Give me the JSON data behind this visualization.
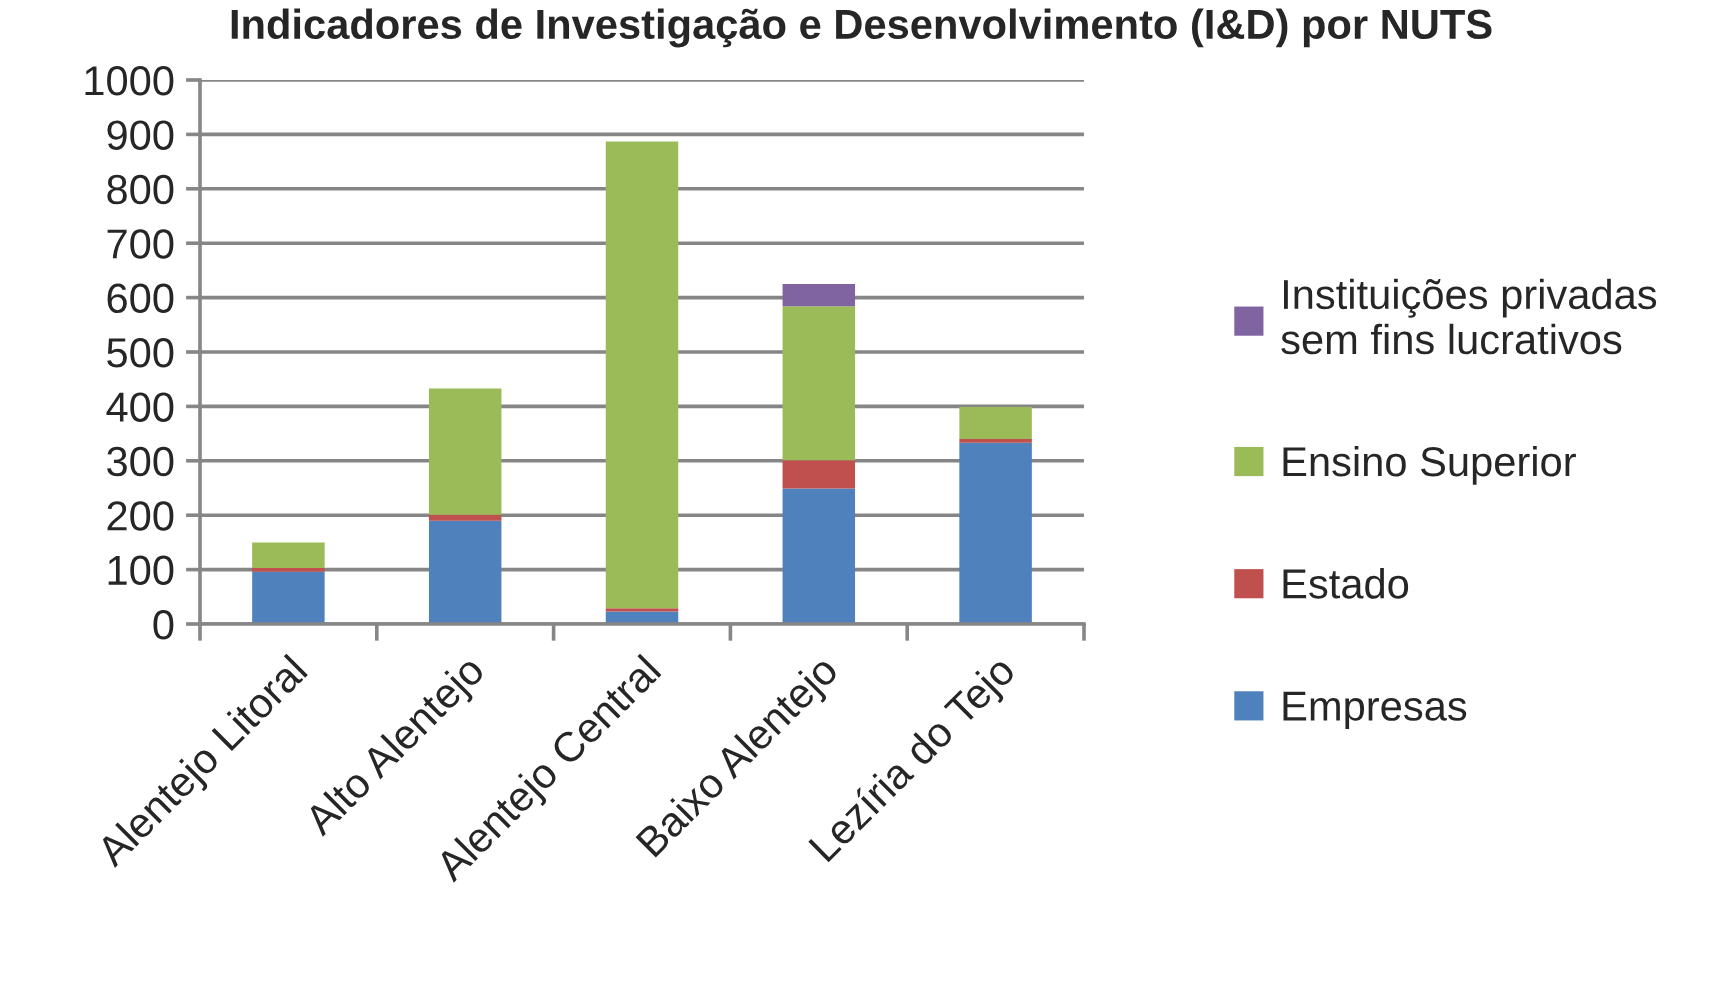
{
  "chart_data": {
    "type": "bar",
    "title": "Indicadores de Investigação e Desenvolvimento (I&D) por NUTS",
    "categories": [
      "Alentejo Litoral",
      "Alto Alentejo",
      "Alentejo Central",
      "Baixo Alentejo",
      "Lezíria do Tejo"
    ],
    "stacked": true,
    "series": [
      {
        "name": "Empresas",
        "color": "#4f81bd",
        "values": [
          96,
          190,
          23,
          249,
          333
        ]
      },
      {
        "name": "Estado",
        "color": "#c0504d",
        "values": [
          7,
          11,
          6,
          52,
          7
        ]
      },
      {
        "name": "Ensino Superior",
        "color": "#9bbb59",
        "values": [
          47,
          232,
          858,
          283,
          59
        ]
      },
      {
        "name": "Instituições privadas\nsem fins lucrativos",
        "color": "#8064a2",
        "values": [
          0,
          0,
          0,
          41,
          0
        ]
      }
    ],
    "ylim": [
      0,
      1000
    ],
    "yticks": [
      0,
      100,
      200,
      300,
      400,
      500,
      600,
      700,
      800,
      900,
      1000
    ],
    "grid": "y",
    "legend": "right"
  }
}
